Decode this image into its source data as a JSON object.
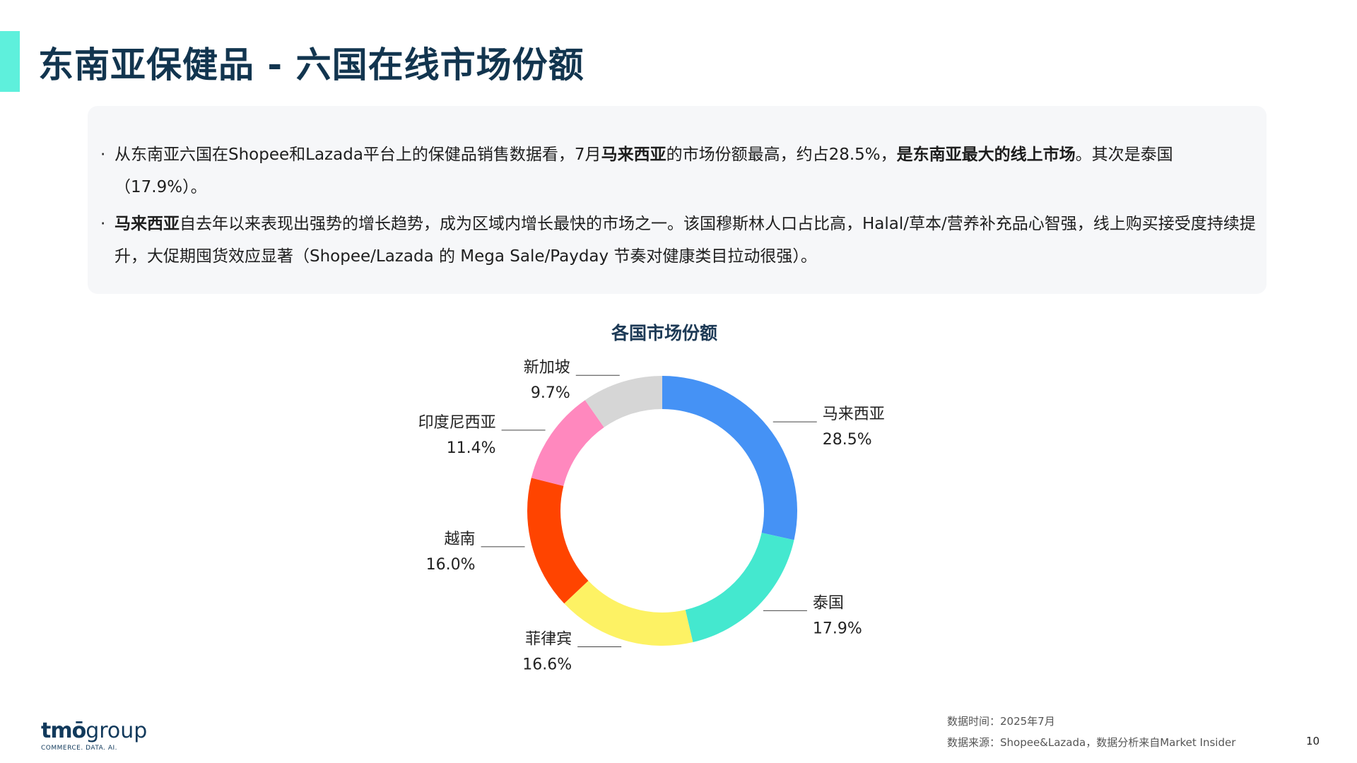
{
  "page": {
    "title": "东南亚保健品 - 六国在线市场份额",
    "page_number": "10"
  },
  "summary": {
    "bullet1": {
      "t1": "从东南亚六国在Shopee和Lazada平台上的保健品销售数据看，7月",
      "b1": "马来西亚",
      "t2": "的市场份额最高，约占28.5%，",
      "b2": "是东南亚最大的线上市场",
      "t3": "。其次是泰国（17.9%）。"
    },
    "bullet2": {
      "b1": "马来西亚",
      "t1": "自去年以来表现出强势的增长趋势，成为区域内增长最快的市场之一。该国穆斯林人口占比高，Halal/草本/营养补充品心智强，线上购买接受度持续提升，大促期囤货效应显著（Shopee/Lazada 的 Mega Sale/Payday 节奏对健康类目拉动很强）。"
    }
  },
  "chart_data": {
    "type": "pie",
    "variant": "donut",
    "title": "各国市场份额",
    "labels_position": "outside with leader lines",
    "slices": [
      {
        "label": "马来西亚",
        "value": 28.5,
        "value_label": "28.5%",
        "color": "#4592f5"
      },
      {
        "label": "泰国",
        "value": 17.9,
        "value_label": "17.9%",
        "color": "#44e8cf"
      },
      {
        "label": "菲律宾",
        "value": 16.6,
        "value_label": "16.6%",
        "color": "#fdf264"
      },
      {
        "label": "越南",
        "value": 16.0,
        "value_label": "16.0%",
        "color": "#ff4400"
      },
      {
        "label": "印度尼西亚",
        "value": 11.4,
        "value_label": "11.4%",
        "color": "#ff88be"
      },
      {
        "label": "新加坡",
        "value": 9.7,
        "value_label": "9.7%",
        "color": "#d6d6d6"
      }
    ]
  },
  "footer": {
    "data_time": "数据时间：2025年7月",
    "data_source": "数据来源：Shopee&Lazada，数据分析来自Market Insider"
  },
  "logo": {
    "brand_bold": "tmō",
    "brand_light": "group",
    "tagline": "COMMERCE. DATA. AI."
  }
}
